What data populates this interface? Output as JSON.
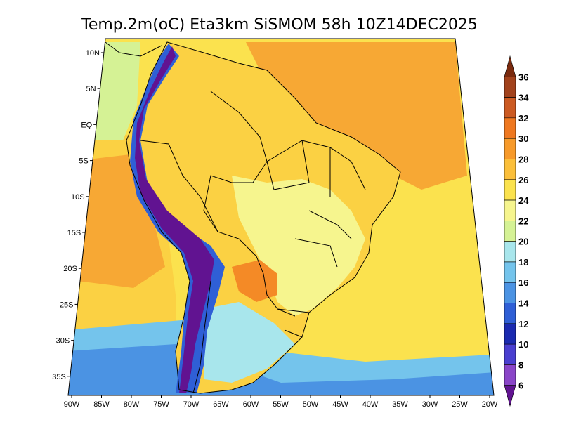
{
  "title": "Temp.2m(oC) Eta3km SiSMOM 58h 10Z14DEC2025",
  "map": {
    "lat_labels": [
      "10N",
      "5N",
      "EQ",
      "5S",
      "10S",
      "15S",
      "20S",
      "25S",
      "30S",
      "35S"
    ],
    "lon_labels": [
      "90W",
      "85W",
      "80W",
      "75W",
      "70W",
      "65W",
      "60W",
      "55W",
      "50W",
      "45W",
      "40W",
      "35W",
      "30W",
      "25W",
      "20W"
    ],
    "extent": {
      "lon_min": -90,
      "lon_max": -20,
      "lat_min": -38,
      "lat_max": 12
    }
  },
  "colorbar": {
    "levels": [
      "36",
      "34",
      "32",
      "30",
      "28",
      "26",
      "24",
      "22",
      "20",
      "18",
      "16",
      "14",
      "12",
      "10",
      "8",
      "6"
    ],
    "colors": [
      "#7a2a0e",
      "#a2421c",
      "#cc5a22",
      "#ef7820",
      "#f79a2a",
      "#fbbf3a",
      "#fbe24e",
      "#f6f58e",
      "#d5f295",
      "#a8e6ec",
      "#74c4ec",
      "#4b93e3",
      "#2f5fd6",
      "#1b2ab0",
      "#4a3fd0",
      "#8a45c8",
      "#611391"
    ]
  },
  "field": {
    "ocean_atlantic_color": "#fbe24e",
    "ocean_atlantic_warm_color": "#f7a834",
    "pacific_warm_color": "#f7a834",
    "pacific_mid_color": "#fbd143",
    "pacific_cool_color": "#d5f295",
    "south_cold_color": "#74c4ec",
    "south_colder_color": "#4b93e3",
    "amazon_color": "#fbd143",
    "brazil_highlands_color": "#f6f58e",
    "andes_color": "#611391",
    "andes_edge_color": "#2f5fd6",
    "pampas_color": "#a8e6ec",
    "chaco_color": "#f48a26"
  }
}
